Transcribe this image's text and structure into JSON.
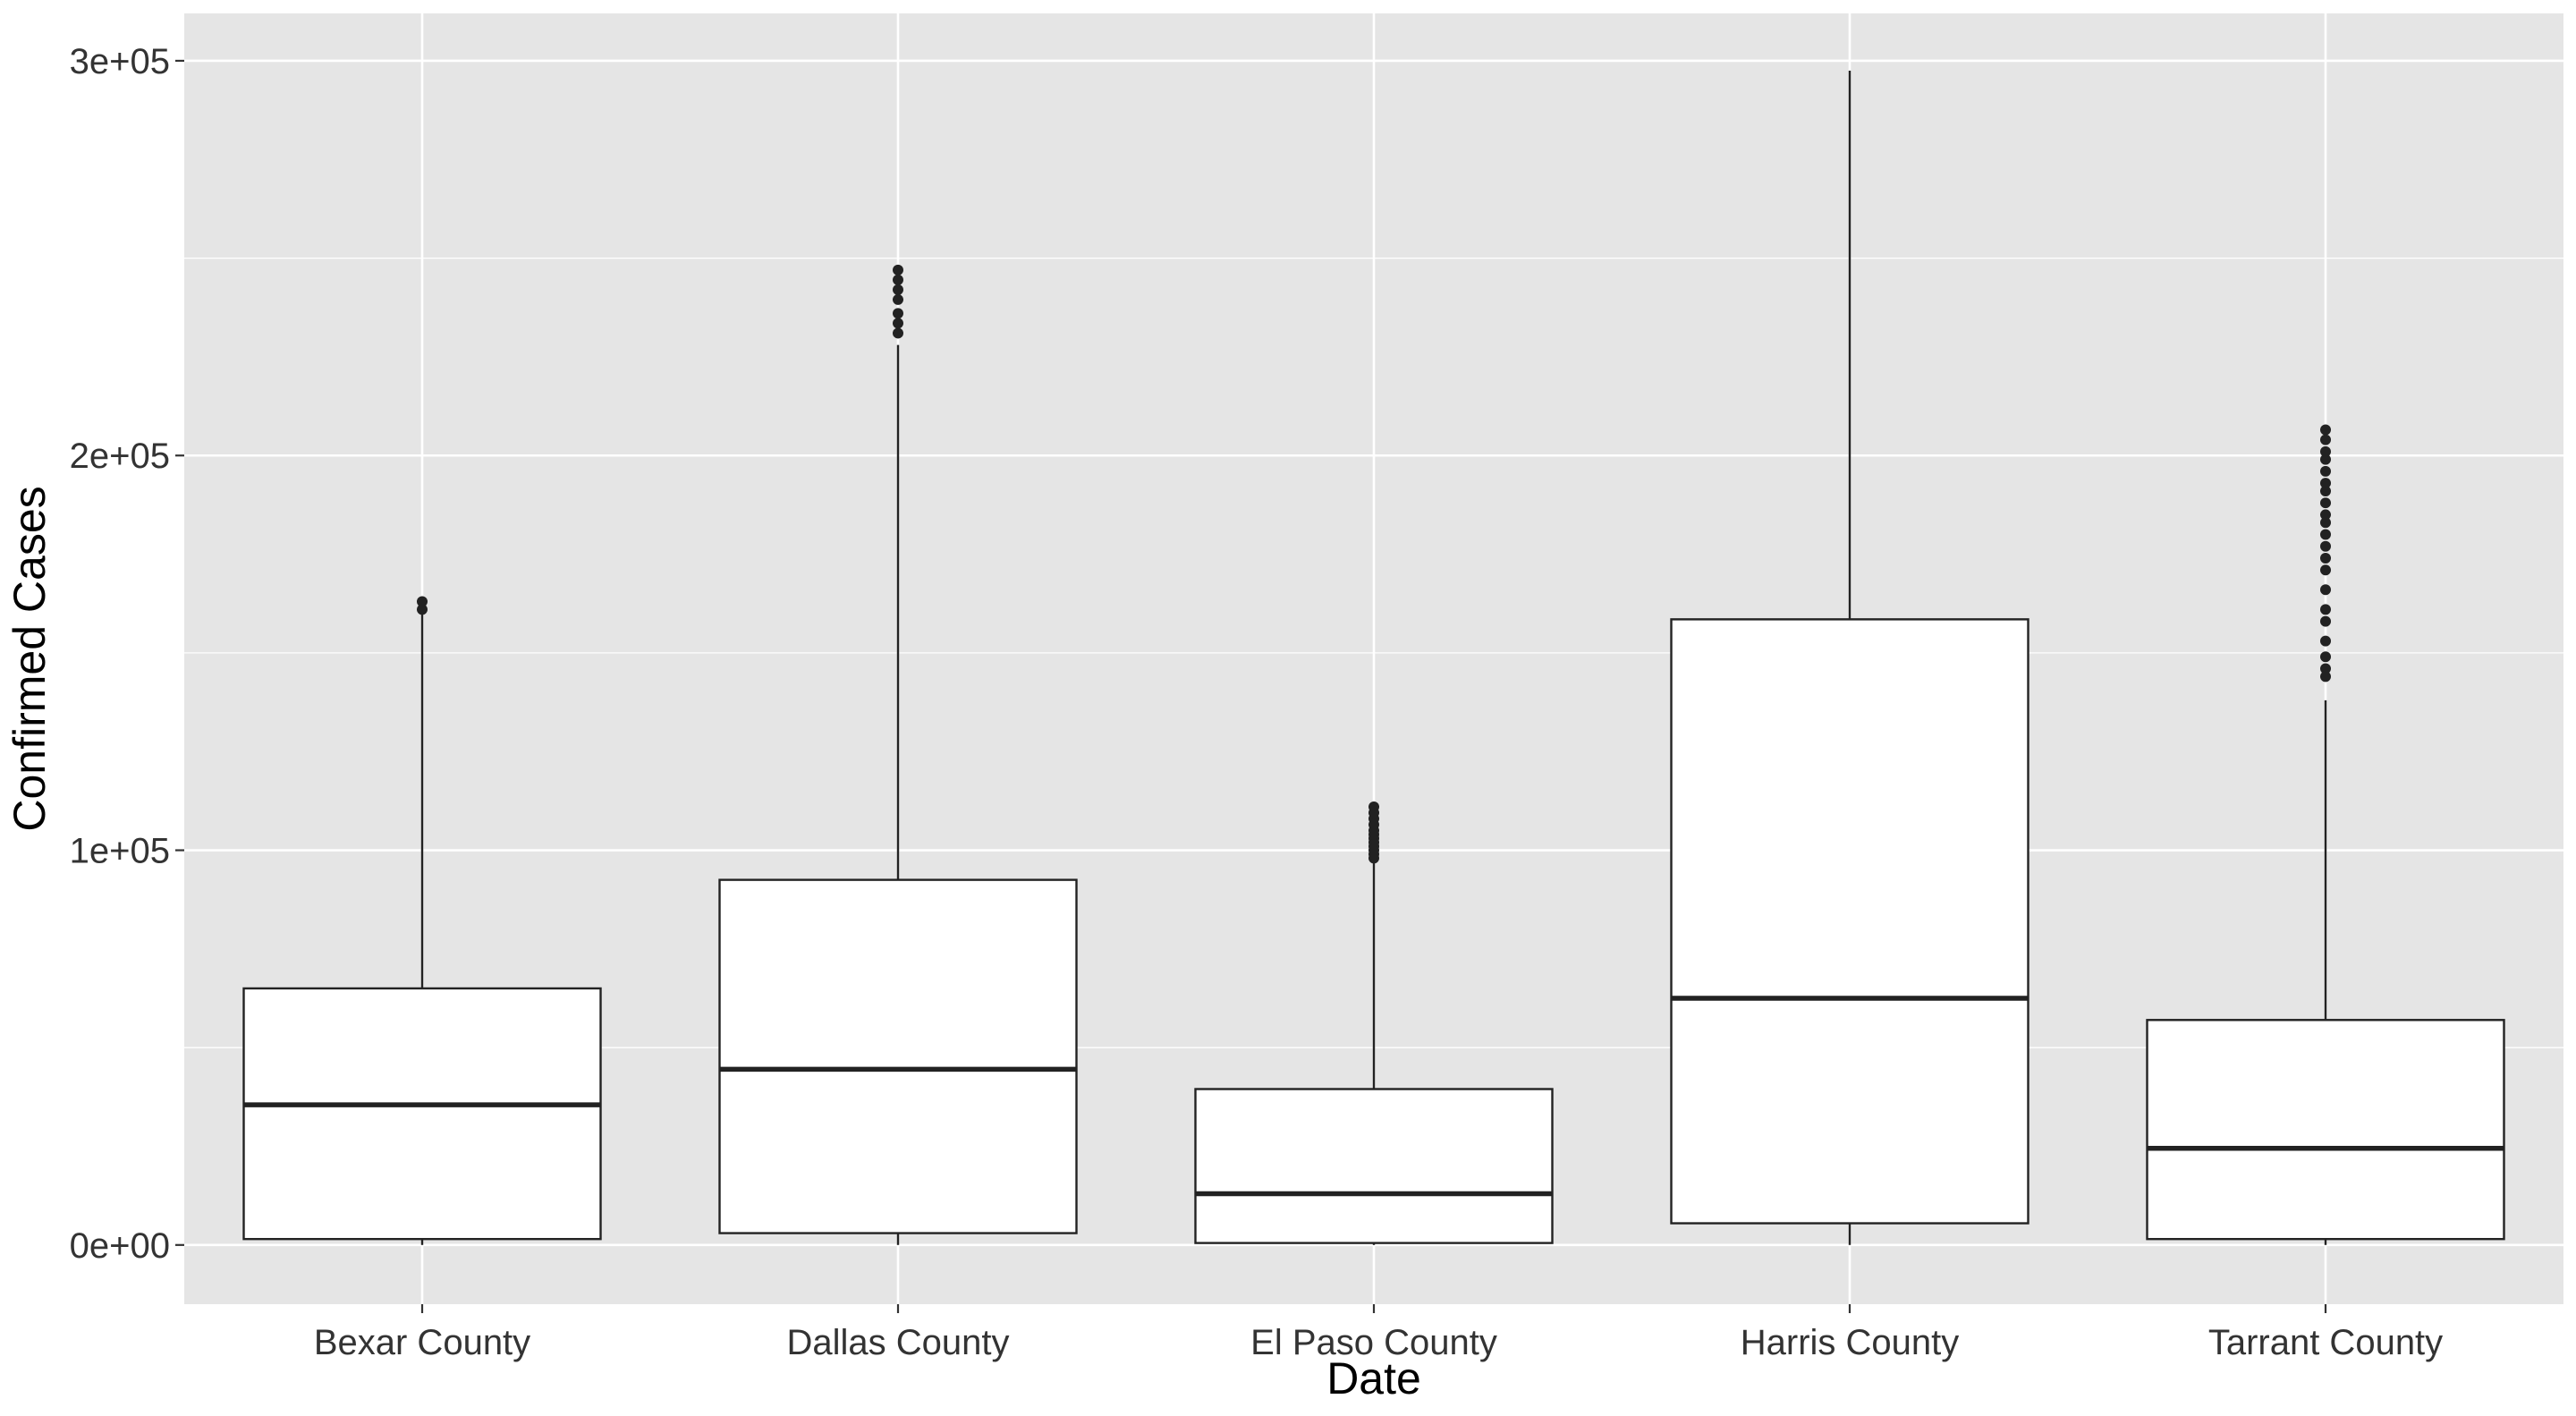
{
  "chart_data": {
    "type": "boxplot",
    "xlabel": "Date",
    "ylabel": "Confirmed Cases",
    "ylim": [
      -15000,
      312000
    ],
    "grid": true,
    "legend": "none",
    "categories": [
      "Bexar County",
      "Dallas County",
      "El Paso County",
      "Harris County",
      "Tarrant County"
    ],
    "y_ticks": [
      0,
      100000,
      200000,
      300000
    ],
    "y_tick_labels": [
      "0e+00",
      "1e+05",
      "2e+05",
      "3e+05"
    ],
    "boxes": [
      {
        "category": "Bexar County",
        "whisker_low": 0,
        "q1": 1500,
        "median": 35500,
        "q3": 65000,
        "whisker_high": 160000,
        "outliers": [
          161000,
          163000
        ]
      },
      {
        "category": "Dallas County",
        "whisker_low": 0,
        "q1": 3000,
        "median": 44500,
        "q3": 92500,
        "whisker_high": 228000,
        "outliers": [
          231000,
          233500,
          236000,
          239500,
          242000,
          244500,
          247000
        ]
      },
      {
        "category": "El Paso County",
        "whisker_low": 0,
        "q1": 500,
        "median": 13000,
        "q3": 39500,
        "whisker_high": 97000,
        "outliers": [
          98000,
          99000,
          100000,
          101000,
          102000,
          103000,
          104000,
          105000,
          106500,
          108000,
          109500,
          111000
        ]
      },
      {
        "category": "Harris County",
        "whisker_low": 0,
        "q1": 5500,
        "median": 62500,
        "q3": 158500,
        "whisker_high": 297500,
        "outliers": []
      },
      {
        "category": "Tarrant County",
        "whisker_low": 0,
        "q1": 1500,
        "median": 24500,
        "q3": 57000,
        "whisker_high": 138000,
        "outliers": [
          144000,
          146000,
          149000,
          153000,
          158000,
          161000,
          166000,
          171000,
          174000,
          177000,
          180000,
          183000,
          185000,
          188000,
          191000,
          193000,
          196000,
          199000,
          201000,
          204000,
          206500
        ]
      }
    ],
    "colors": {
      "panel": "#e5e5e5",
      "grid": "#ffffff",
      "box_fill": "#ffffff",
      "stroke": "#222222",
      "axis_text": "#333333"
    }
  }
}
